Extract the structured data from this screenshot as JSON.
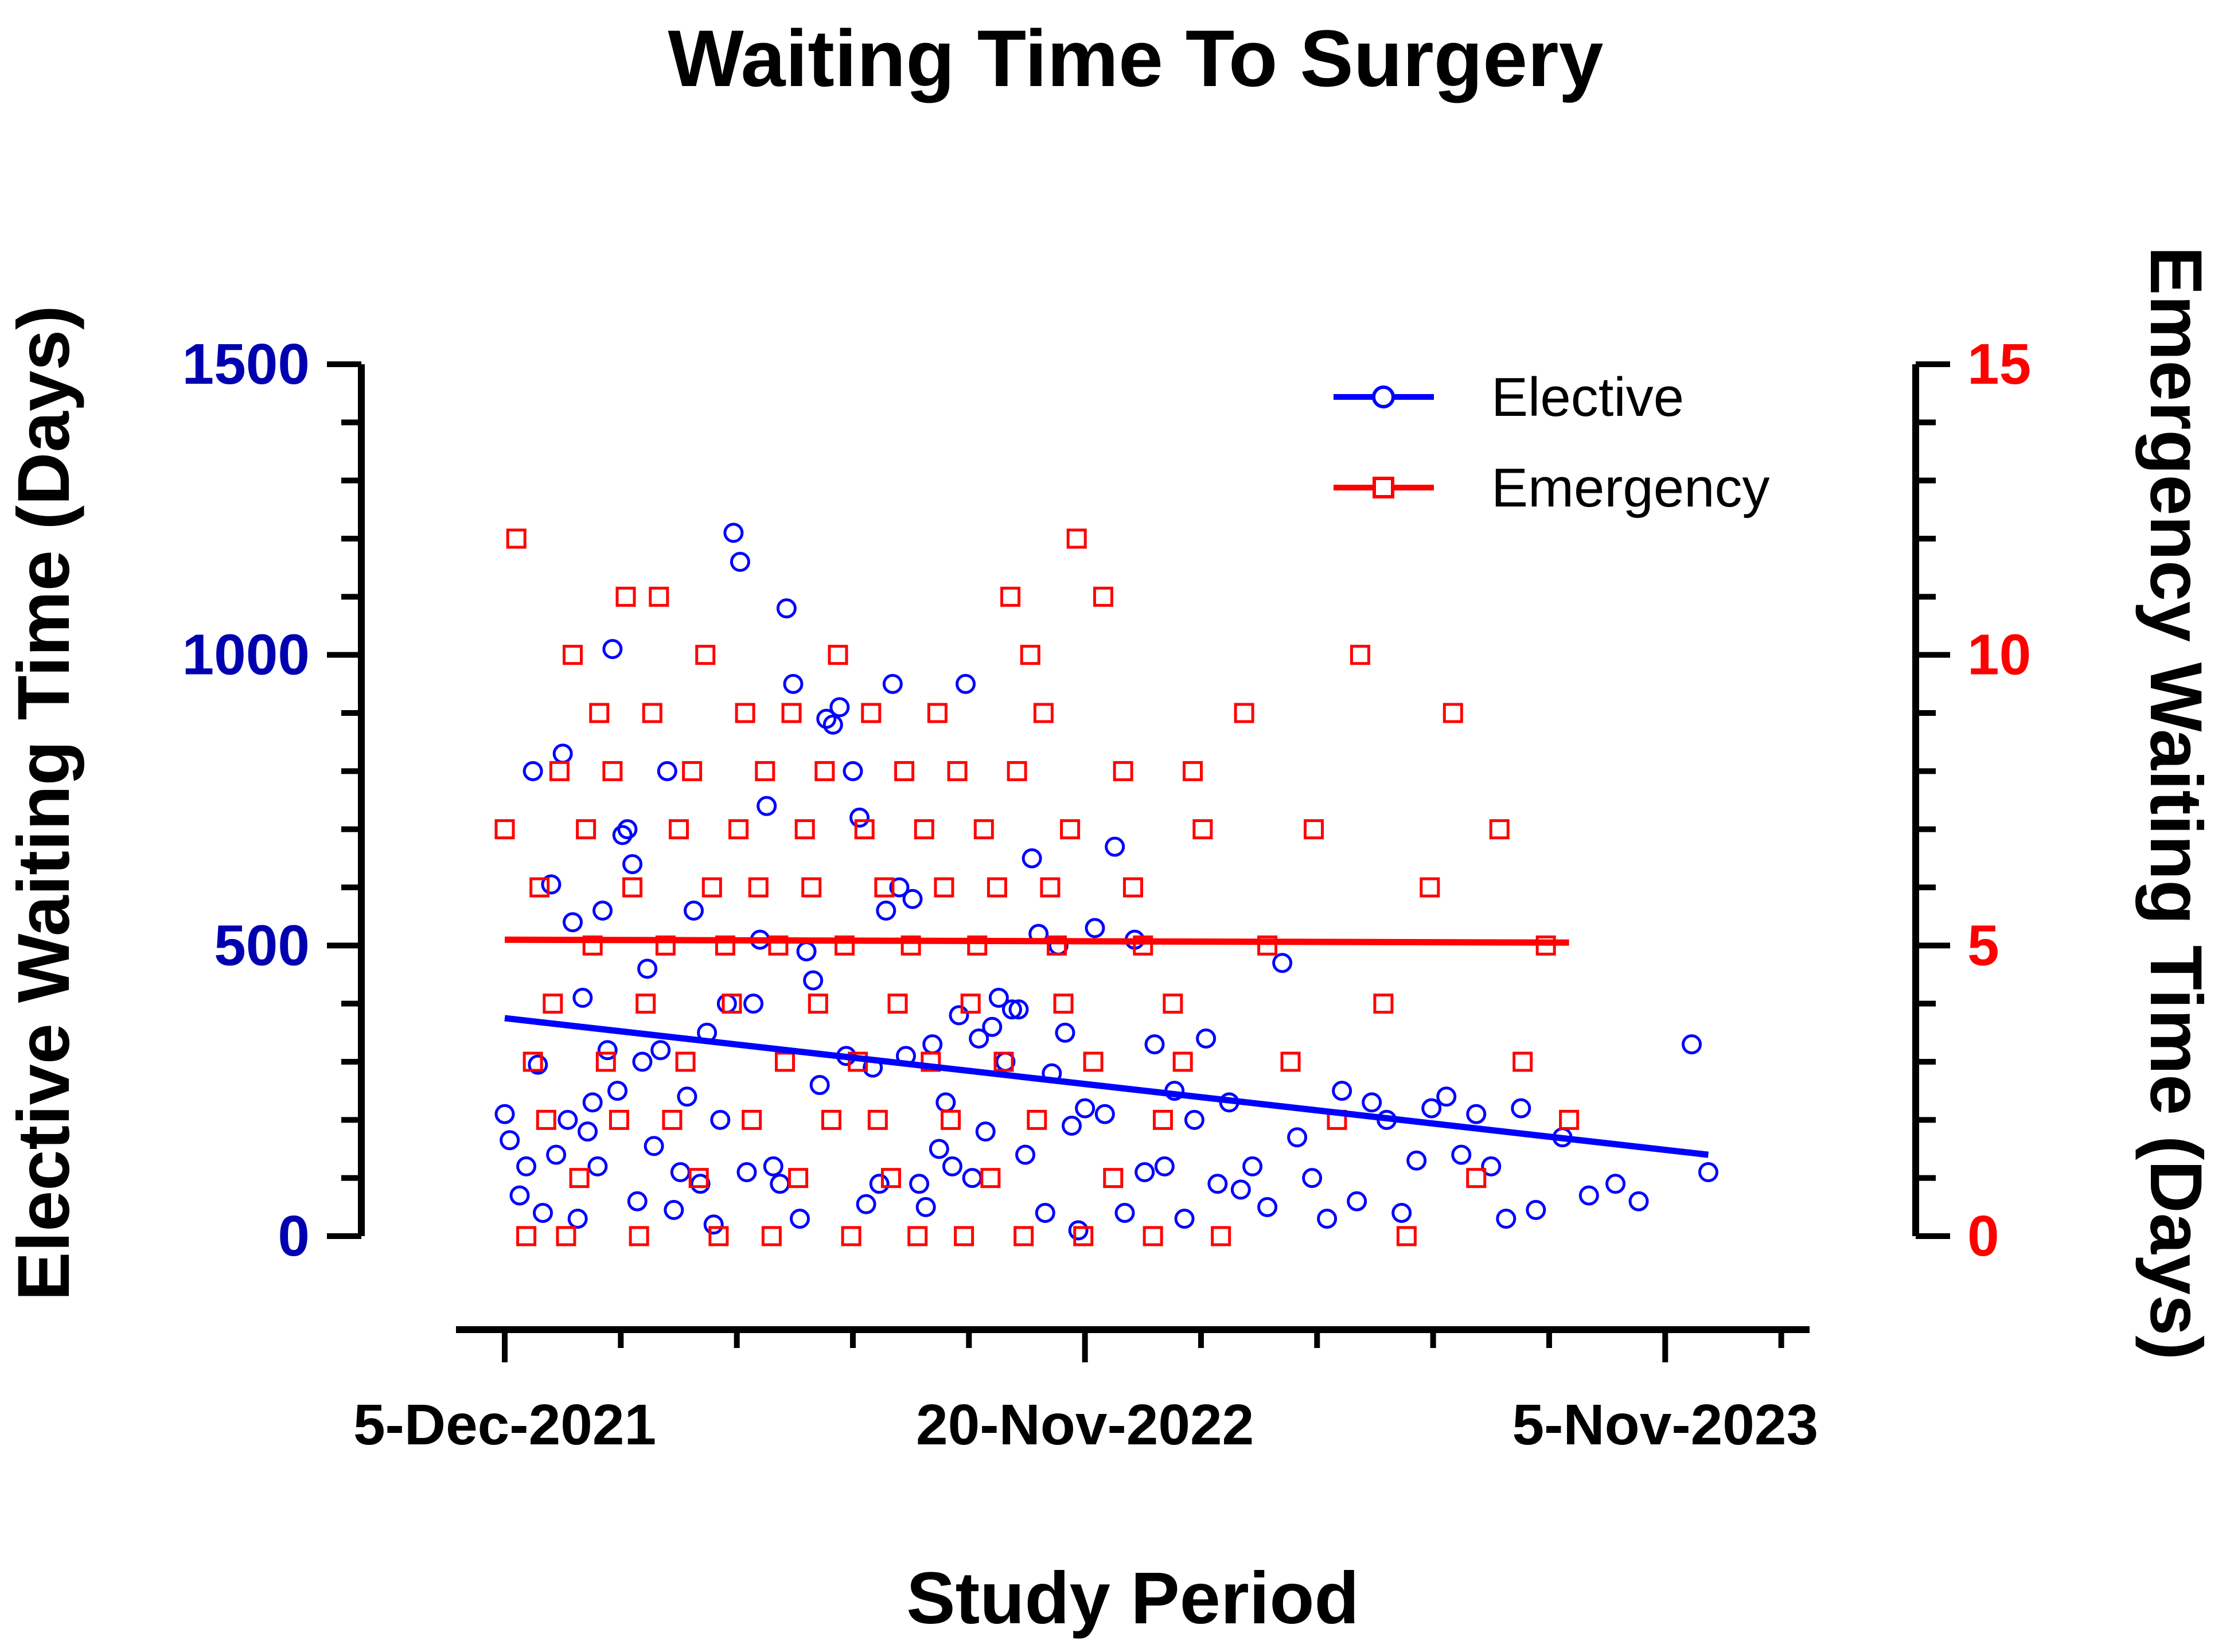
{
  "chart_data": {
    "type": "scatter",
    "title": "Waiting Time To Surgery",
    "xlabel": "Study Period",
    "ylabel_left": "Elective Waiting Time (Days)",
    "ylabel_right": "Emergency Waiting Time (Days)",
    "x_axis": {
      "type": "date",
      "range": [
        "2021-12-05",
        "2023-12-05"
      ],
      "ticks": [
        "5-Dec-2021",
        "20-Nov-2022",
        "5-Nov-2023"
      ],
      "tick_dates": [
        "2021-12-05",
        "2022-11-20",
        "2023-11-05"
      ]
    },
    "y_left": {
      "range": [
        0,
        1500
      ],
      "ticks": [
        "0",
        "500",
        "1000",
        "1500"
      ],
      "color": "#0000b0"
    },
    "y_right": {
      "range": [
        0,
        15
      ],
      "ticks": [
        "0",
        "5",
        "10",
        "15"
      ],
      "color": "#ff0000"
    },
    "legend": {
      "position": "top-right",
      "entries": [
        "Elective",
        "Emergency"
      ]
    },
    "series": [
      {
        "name": "Elective",
        "axis": "left",
        "marker": "circle",
        "color": "#0000ff",
        "x": [
          "2021-12-05",
          "2021-12-08",
          "2021-12-14",
          "2021-12-18",
          "2021-12-22",
          "2021-12-25",
          "2021-12-28",
          "2022-01-02",
          "2022-01-05",
          "2022-01-09",
          "2022-01-12",
          "2022-01-15",
          "2022-01-18",
          "2022-01-21",
          "2022-01-24",
          "2022-01-27",
          "2022-01-30",
          "2022-02-02",
          "2022-02-05",
          "2022-02-08",
          "2022-02-11",
          "2022-02-14",
          "2022-02-17",
          "2022-02-20",
          "2022-02-23",
          "2022-02-26",
          "2022-03-01",
          "2022-03-05",
          "2022-03-09",
          "2022-03-13",
          "2022-03-17",
          "2022-03-21",
          "2022-03-25",
          "2022-03-29",
          "2022-04-02",
          "2022-04-06",
          "2022-04-10",
          "2022-04-14",
          "2022-04-18",
          "2022-04-22",
          "2022-04-26",
          "2022-04-30",
          "2022-05-04",
          "2022-05-08",
          "2022-05-12",
          "2022-05-16",
          "2022-05-20",
          "2022-05-24",
          "2022-05-28",
          "2022-06-01",
          "2022-06-05",
          "2022-06-09",
          "2022-06-13",
          "2022-06-17",
          "2022-06-21",
          "2022-06-25",
          "2022-06-29",
          "2022-07-03",
          "2022-07-07",
          "2022-07-11",
          "2022-07-15",
          "2022-07-19",
          "2022-07-23",
          "2022-07-27",
          "2022-07-31",
          "2022-08-04",
          "2022-08-08",
          "2022-08-12",
          "2022-08-16",
          "2022-08-20",
          "2022-08-24",
          "2022-08-28",
          "2022-09-01",
          "2022-09-05",
          "2022-09-09",
          "2022-09-13",
          "2022-09-17",
          "2022-09-21",
          "2022-09-25",
          "2022-09-29",
          "2022-10-03",
          "2022-10-07",
          "2022-10-11",
          "2022-10-15",
          "2022-10-19",
          "2022-10-23",
          "2022-10-27",
          "2022-10-31",
          "2022-11-04",
          "2022-11-08",
          "2022-11-12",
          "2022-11-16",
          "2022-11-20",
          "2022-11-26",
          "2022-12-02",
          "2022-12-08",
          "2022-12-14",
          "2022-12-20",
          "2022-12-26",
          "2023-01-01",
          "2023-01-07",
          "2023-01-13",
          "2023-01-19",
          "2023-01-25",
          "2023-02-01",
          "2023-02-08",
          "2023-02-15",
          "2023-02-22",
          "2023-03-01",
          "2023-03-10",
          "2023-03-19",
          "2023-03-28",
          "2023-04-06",
          "2023-04-15",
          "2023-04-24",
          "2023-05-03",
          "2023-05-12",
          "2023-05-21",
          "2023-05-30",
          "2023-06-08",
          "2023-06-17",
          "2023-06-26",
          "2023-07-05",
          "2023-07-14",
          "2023-07-23",
          "2023-08-01",
          "2023-08-10",
          "2023-08-19",
          "2023-09-04",
          "2023-09-20",
          "2023-10-06",
          "2023-10-20",
          "2023-11-21",
          "2023-12-01"
        ],
        "y": [
          210,
          165,
          70,
          120,
          800,
          295,
          40,
          605,
          140,
          830,
          200,
          540,
          30,
          410,
          180,
          230,
          120,
          560,
          320,
          1010,
          250,
          690,
          700,
          640,
          60,
          300,
          460,
          155,
          320,
          800,
          45,
          110,
          240,
          560,
          90,
          350,
          20,
          200,
          400,
          1210,
          1160,
          110,
          400,
          510,
          740,
          120,
          90,
          1080,
          950,
          30,
          490,
          440,
          260,
          890,
          880,
          910,
          310,
          800,
          720,
          55,
          290,
          90,
          560,
          950,
          600,
          310,
          580,
          90,
          50,
          330,
          150,
          230,
          120,
          380,
          950,
          100,
          340,
          180,
          360,
          410,
          300,
          390,
          390,
          140,
          650,
          520,
          40,
          280,
          500,
          350,
          190,
          10,
          220,
          530,
          210,
          670,
          40,
          510,
          110,
          330,
          120,
          250,
          30,
          200,
          340,
          90,
          230,
          80,
          120,
          50,
          470,
          170,
          100,
          30,
          250,
          60,
          230,
          200,
          40,
          130,
          220,
          240,
          140,
          210,
          120,
          30,
          220,
          45,
          170,
          70,
          90,
          60,
          330,
          110
        ]
      },
      {
        "name": "Emergency",
        "axis": "right",
        "marker": "square",
        "color": "#ff0000",
        "x": [
          "2021-12-05",
          "2021-12-12",
          "2021-12-18",
          "2021-12-22",
          "2021-12-26",
          "2021-12-30",
          "2022-01-03",
          "2022-01-07",
          "2022-01-11",
          "2022-01-15",
          "2022-01-19",
          "2022-01-23",
          "2022-01-27",
          "2022-01-31",
          "2022-02-04",
          "2022-02-08",
          "2022-02-12",
          "2022-02-16",
          "2022-02-20",
          "2022-02-24",
          "2022-02-28",
          "2022-03-04",
          "2022-03-08",
          "2022-03-12",
          "2022-03-16",
          "2022-03-20",
          "2022-03-24",
          "2022-03-28",
          "2022-04-01",
          "2022-04-05",
          "2022-04-09",
          "2022-04-13",
          "2022-04-17",
          "2022-04-21",
          "2022-04-25",
          "2022-04-29",
          "2022-05-03",
          "2022-05-07",
          "2022-05-11",
          "2022-05-15",
          "2022-05-19",
          "2022-05-23",
          "2022-05-27",
          "2022-05-31",
          "2022-06-04",
          "2022-06-08",
          "2022-06-12",
          "2022-06-16",
          "2022-06-20",
          "2022-06-24",
          "2022-06-28",
          "2022-07-02",
          "2022-07-06",
          "2022-07-10",
          "2022-07-14",
          "2022-07-18",
          "2022-07-22",
          "2022-07-26",
          "2022-07-30",
          "2022-08-03",
          "2022-08-07",
          "2022-08-11",
          "2022-08-15",
          "2022-08-19",
          "2022-08-23",
          "2022-08-27",
          "2022-08-31",
          "2022-09-04",
          "2022-09-08",
          "2022-09-12",
          "2022-09-16",
          "2022-09-20",
          "2022-09-24",
          "2022-09-28",
          "2022-10-02",
          "2022-10-06",
          "2022-10-10",
          "2022-10-14",
          "2022-10-18",
          "2022-10-22",
          "2022-10-26",
          "2022-10-30",
          "2022-11-03",
          "2022-11-07",
          "2022-11-11",
          "2022-11-15",
          "2022-11-19",
          "2022-11-25",
          "2022-12-01",
          "2022-12-07",
          "2022-12-13",
          "2022-12-19",
          "2022-12-25",
          "2022-12-31",
          "2023-01-06",
          "2023-01-12",
          "2023-01-18",
          "2023-01-24",
          "2023-01-30",
          "2023-02-10",
          "2023-02-24",
          "2023-03-10",
          "2023-03-24",
          "2023-04-07",
          "2023-04-21",
          "2023-05-05",
          "2023-05-19",
          "2023-06-02",
          "2023-06-16",
          "2023-06-30",
          "2023-07-14",
          "2023-07-28",
          "2023-08-11",
          "2023-08-25",
          "2023-09-08"
        ],
        "y": [
          7,
          12,
          0,
          3,
          6,
          2,
          4,
          8,
          0,
          10,
          1,
          7,
          5,
          9,
          3,
          8,
          2,
          11,
          6,
          0,
          4,
          9,
          11,
          5,
          2,
          7,
          3,
          8,
          1,
          10,
          6,
          0,
          5,
          4,
          7,
          9,
          2,
          6,
          8,
          0,
          5,
          3,
          9,
          1,
          7,
          6,
          4,
          8,
          2,
          10,
          5,
          0,
          3,
          7,
          9,
          2,
          6,
          1,
          4,
          8,
          5,
          0,
          7,
          3,
          9,
          6,
          2,
          8,
          0,
          4,
          5,
          7,
          1,
          6,
          3,
          11,
          8,
          0,
          10,
          2,
          9,
          6,
          5,
          4,
          7,
          12,
          0,
          3,
          11,
          1,
          8,
          6,
          5,
          0,
          2,
          4,
          3,
          8,
          7,
          0,
          9,
          5,
          3,
          7,
          2,
          10,
          4,
          0,
          6,
          9,
          1,
          7,
          3,
          5,
          2
        ]
      }
    ],
    "trend_lines": [
      {
        "series": "Elective",
        "axis": "left",
        "color": "#0000ff",
        "x": [
          "2021-12-05",
          "2023-12-01"
        ],
        "y": [
          375,
          140
        ]
      },
      {
        "series": "Emergency",
        "axis": "right",
        "color": "#ff0000",
        "x": [
          "2021-12-05",
          "2023-09-08"
        ],
        "y": [
          5.1,
          5.05
        ]
      }
    ]
  }
}
